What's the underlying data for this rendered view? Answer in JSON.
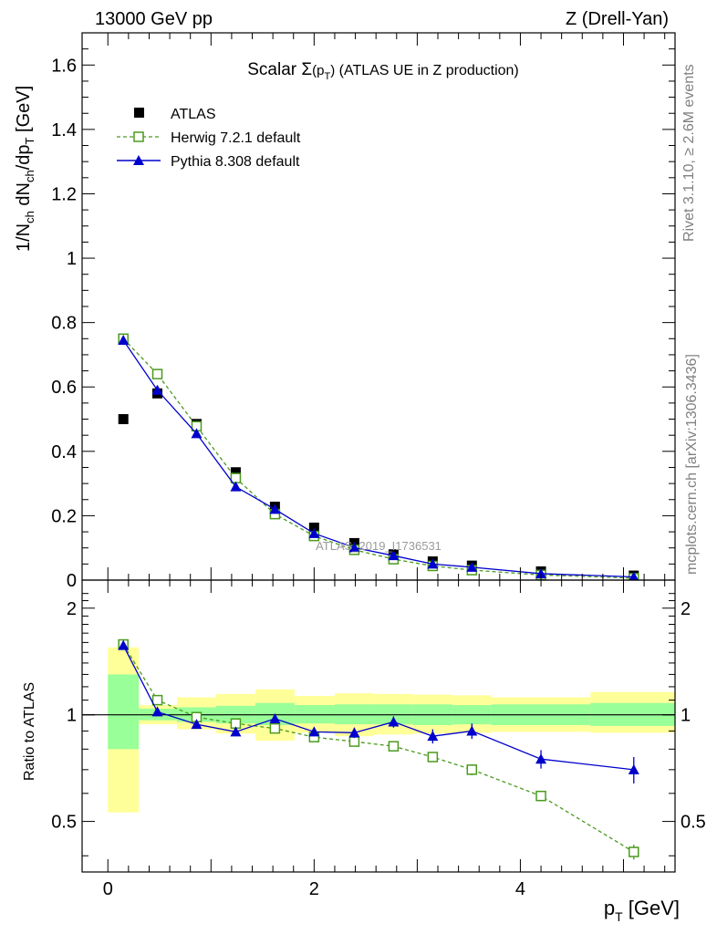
{
  "header": {
    "energy": "13000 GeV pp",
    "process": "Z (Drell-Yan)"
  },
  "side_labels": {
    "rivet": "Rivet 3.1.10, ≥ 2.6M events",
    "mcplots": "mcplots.cern.ch [arXiv:1306.3436]"
  },
  "chart_data": [
    {
      "type": "scatter",
      "title": "Scalar Σ(pT) (ATLAS UE in Z production)",
      "title_parts": {
        "pre": "Scalar ",
        "sigma": "Σ",
        "open": "(p",
        "sub": "T",
        "close": ")",
        "post": " (ATLAS UE in Z production)"
      },
      "watermark": "ATLAS_2019_I1736531",
      "xlabel": "p_T [GeV]",
      "xlabel_parts": {
        "p": "p",
        "sub": "T",
        "rest": " [GeV]"
      },
      "ylabel": "1/N_ch dN_ch/dp_T [GeV]",
      "xlim": [
        -0.25,
        5.5
      ],
      "ylim": [
        0,
        1.7
      ],
      "x_ticks": [
        "0",
        "2",
        "4"
      ],
      "y_ticks": [
        "0",
        "0.2",
        "0.4",
        "0.6",
        "0.8",
        "1",
        "1.2",
        "1.4",
        "1.6"
      ],
      "legend_position": "top-left",
      "x": [
        0.15,
        0.48,
        0.86,
        1.24,
        1.62,
        2.0,
        2.39,
        2.77,
        3.15,
        3.53,
        4.2,
        5.1
      ],
      "bin_edges": [
        0.0,
        0.3,
        0.67,
        1.05,
        1.43,
        1.81,
        2.2,
        2.58,
        2.96,
        3.34,
        3.72,
        4.68,
        5.5
      ],
      "series": [
        {
          "name": "ATLAS",
          "color": "#000000",
          "marker": "square-filled",
          "values": [
            0.5,
            0.58,
            0.485,
            0.335,
            0.228,
            0.163,
            0.115,
            0.08,
            0.058,
            0.045,
            0.027,
            0.014
          ]
        },
        {
          "name": "Herwig 7.2.1 default",
          "color": "#4a9a1e",
          "marker": "square-open",
          "line": "dashed",
          "values": [
            0.75,
            0.64,
            0.478,
            0.317,
            0.205,
            0.137,
            0.094,
            0.065,
            0.044,
            0.031,
            0.016,
            0.006
          ]
        },
        {
          "name": "Pythia 8.308 default",
          "color": "#0000cc",
          "marker": "triangle-filled",
          "line": "solid",
          "values": [
            0.745,
            0.59,
            0.455,
            0.29,
            0.22,
            0.145,
            0.101,
            0.076,
            0.05,
            0.04,
            0.02,
            0.01
          ]
        }
      ]
    },
    {
      "type": "scatter",
      "ylabel": "Ratio to ATLAS",
      "ylim": [
        0.36,
        2.4
      ],
      "y_scale": "log",
      "y_ticks": [
        "0.5",
        "1",
        "2"
      ],
      "reference": 1,
      "x": [
        0.15,
        0.48,
        0.86,
        1.24,
        1.62,
        2.0,
        2.39,
        2.77,
        3.15,
        3.53,
        4.2,
        5.1
      ],
      "bin_edges": [
        0.0,
        0.3,
        0.67,
        1.05,
        1.43,
        1.81,
        2.2,
        2.58,
        2.96,
        3.34,
        3.72,
        4.68,
        5.5
      ],
      "bands": {
        "green_lo": [
          0.8,
          0.965,
          0.955,
          0.945,
          0.935,
          0.945,
          0.94,
          0.94,
          0.935,
          0.94,
          0.935,
          0.93
        ],
        "green_hi": [
          1.3,
          1.04,
          1.05,
          1.06,
          1.08,
          1.065,
          1.07,
          1.07,
          1.07,
          1.065,
          1.07,
          1.08
        ],
        "yellow_lo": [
          0.53,
          0.94,
          0.91,
          0.885,
          0.845,
          0.89,
          0.87,
          0.88,
          0.885,
          0.89,
          0.895,
          0.89
        ],
        "yellow_hi": [
          1.55,
          1.065,
          1.12,
          1.145,
          1.18,
          1.13,
          1.15,
          1.145,
          1.14,
          1.135,
          1.12,
          1.16
        ]
      },
      "series": [
        {
          "name": "Herwig 7.2.1 default",
          "color": "#4a9a1e",
          "values": [
            1.58,
            1.1,
            0.985,
            0.945,
            0.915,
            0.865,
            0.84,
            0.815,
            0.76,
            0.7,
            0.59,
            0.41
          ],
          "errors": [
            0.01,
            0.01,
            0.01,
            0.01,
            0.01,
            0.01,
            0.01,
            0.015,
            0.02,
            0.025,
            0.02,
            0.02
          ]
        },
        {
          "name": "Pythia 8.308 default",
          "color": "#0000cc",
          "values": [
            1.57,
            1.02,
            0.94,
            0.895,
            0.975,
            0.895,
            0.89,
            0.955,
            0.87,
            0.9,
            0.75,
            0.7
          ],
          "errors": [
            0.01,
            0.01,
            0.012,
            0.015,
            0.02,
            0.025,
            0.03,
            0.035,
            0.04,
            0.045,
            0.045,
            0.06
          ]
        }
      ]
    }
  ]
}
